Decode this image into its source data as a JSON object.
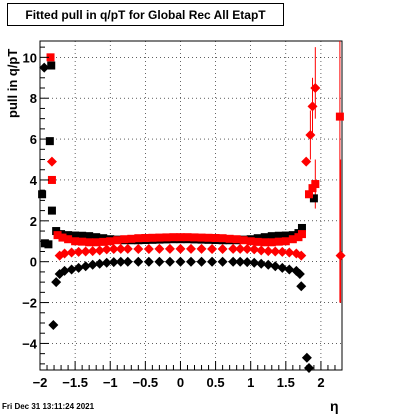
{
  "chart_data": {
    "type": "scatter",
    "title": "Fitted pull in q/pT for Global Rec All EtapT",
    "xlabel": "η",
    "ylabel": "pull in q/pT",
    "xlim": [
      -2.0,
      2.3
    ],
    "ylim": [
      -5.3,
      10.8
    ],
    "xticks": [
      -2,
      -1.5,
      -1,
      -0.5,
      0,
      0.5,
      1,
      1.5,
      2
    ],
    "xtick_labels": [
      "−2",
      "−1.5",
      "−1",
      "−0.5",
      "0",
      "0.5",
      "1",
      "1.5",
      "2"
    ],
    "yticks": [
      -4,
      -2,
      0,
      2,
      4,
      6,
      8,
      10
    ],
    "ytick_labels": [
      "−4",
      "−2",
      "0",
      "2",
      "4",
      "6",
      "8",
      "10"
    ],
    "grid": true,
    "timestamp": "Fri Dec 31 13:11:24 2021",
    "series": [
      {
        "marker": "square",
        "color": "#000000",
        "points": [
          [
            -1.97,
            3.3
          ],
          [
            -1.93,
            0.9
          ],
          [
            -1.88,
            0.85
          ],
          [
            -1.86,
            5.9
          ],
          [
            -1.84,
            9.6
          ],
          [
            -1.83,
            2.5
          ],
          [
            -1.77,
            1.5
          ],
          [
            -1.7,
            1.35
          ],
          [
            -1.6,
            1.3
          ],
          [
            -1.5,
            1.28
          ],
          [
            -1.4,
            1.27
          ],
          [
            -1.3,
            1.25
          ],
          [
            -1.2,
            1.2
          ],
          [
            -1.1,
            1.15
          ],
          [
            -1.0,
            1.1
          ],
          [
            -0.9,
            1.08
          ],
          [
            -0.8,
            1.05
          ],
          [
            -0.7,
            1.05
          ],
          [
            -0.6,
            1.05
          ],
          [
            -0.5,
            1.06
          ],
          [
            -0.4,
            1.07
          ],
          [
            -0.3,
            1.08
          ],
          [
            -0.2,
            1.09
          ],
          [
            -0.1,
            1.1
          ],
          [
            0.0,
            1.1
          ],
          [
            0.1,
            1.1
          ],
          [
            0.2,
            1.09
          ],
          [
            0.3,
            1.08
          ],
          [
            0.4,
            1.07
          ],
          [
            0.5,
            1.06
          ],
          [
            0.6,
            1.05
          ],
          [
            0.7,
            1.05
          ],
          [
            0.8,
            1.05
          ],
          [
            0.9,
            1.08
          ],
          [
            1.0,
            1.1
          ],
          [
            1.1,
            1.15
          ],
          [
            1.2,
            1.2
          ],
          [
            1.3,
            1.25
          ],
          [
            1.4,
            1.27
          ],
          [
            1.5,
            1.28
          ],
          [
            1.6,
            1.3
          ],
          [
            1.68,
            1.4
          ],
          [
            1.73,
            1.65
          ],
          [
            1.9,
            3.1
          ]
        ]
      },
      {
        "marker": "diamond",
        "color": "#000000",
        "points": [
          [
            -1.94,
            9.5
          ],
          [
            -1.81,
            -3.1
          ],
          [
            -1.77,
            -1.0
          ],
          [
            -1.72,
            -0.6
          ],
          [
            -1.65,
            -0.45
          ],
          [
            -1.55,
            -0.38
          ],
          [
            -1.45,
            -0.3
          ],
          [
            -1.35,
            -0.22
          ],
          [
            -1.25,
            -0.15
          ],
          [
            -1.15,
            -0.1
          ],
          [
            -1.05,
            -0.05
          ],
          [
            -0.95,
            -0.02
          ],
          [
            -0.85,
            0.0
          ],
          [
            -0.75,
            0.0
          ],
          [
            -0.6,
            0.0
          ],
          [
            -0.45,
            0.0
          ],
          [
            -0.3,
            0.0
          ],
          [
            -0.15,
            0.0
          ],
          [
            0.0,
            0.0
          ],
          [
            0.15,
            0.0
          ],
          [
            0.3,
            0.0
          ],
          [
            0.45,
            0.0
          ],
          [
            0.6,
            0.0
          ],
          [
            0.75,
            0.0
          ],
          [
            0.85,
            0.0
          ],
          [
            0.95,
            -0.02
          ],
          [
            1.05,
            -0.05
          ],
          [
            1.15,
            -0.1
          ],
          [
            1.25,
            -0.15
          ],
          [
            1.35,
            -0.22
          ],
          [
            1.45,
            -0.3
          ],
          [
            1.55,
            -0.38
          ],
          [
            1.65,
            -0.45
          ],
          [
            1.7,
            -0.6
          ],
          [
            1.72,
            -1.2
          ],
          [
            1.8,
            -4.7
          ],
          [
            1.83,
            -5.2
          ]
        ]
      },
      {
        "marker": "square",
        "color": "#ff0000",
        "points": [
          [
            -1.85,
            10.0
          ],
          [
            -1.83,
            4.0
          ],
          [
            -1.75,
            1.3
          ],
          [
            -1.68,
            1.18
          ],
          [
            -1.6,
            1.1
          ],
          [
            -1.5,
            1.0
          ],
          [
            -1.4,
            0.98
          ],
          [
            -1.3,
            0.95
          ],
          [
            -1.2,
            0.95
          ],
          [
            -1.1,
            0.97
          ],
          [
            -1.0,
            1.0
          ],
          [
            -0.9,
            1.05
          ],
          [
            -0.8,
            1.1
          ],
          [
            -0.7,
            1.12
          ],
          [
            -0.6,
            1.15
          ],
          [
            -0.5,
            1.16
          ],
          [
            -0.4,
            1.17
          ],
          [
            -0.3,
            1.18
          ],
          [
            -0.2,
            1.19
          ],
          [
            -0.1,
            1.2
          ],
          [
            0.0,
            1.2
          ],
          [
            0.1,
            1.2
          ],
          [
            0.2,
            1.19
          ],
          [
            0.3,
            1.18
          ],
          [
            0.4,
            1.17
          ],
          [
            0.5,
            1.16
          ],
          [
            0.6,
            1.15
          ],
          [
            0.7,
            1.12
          ],
          [
            0.8,
            1.1
          ],
          [
            0.9,
            1.05
          ],
          [
            1.0,
            1.0
          ],
          [
            1.1,
            0.97
          ],
          [
            1.2,
            0.95
          ],
          [
            1.3,
            0.95
          ],
          [
            1.4,
            0.98
          ],
          [
            1.5,
            1.0
          ],
          [
            1.6,
            1.1
          ],
          [
            1.68,
            1.2
          ],
          [
            1.73,
            1.35
          ],
          [
            1.83,
            3.3
          ],
          [
            1.88,
            3.6
          ],
          [
            1.92,
            3.8
          ],
          [
            2.27,
            7.1
          ]
        ],
        "errors": [
          [
            1.92,
            2.6,
            5.0
          ],
          [
            2.27,
            -2.0,
            10.8
          ]
        ]
      },
      {
        "marker": "diamond",
        "color": "#ff0000",
        "points": [
          [
            -1.83,
            4.9
          ],
          [
            -1.72,
            0.3
          ],
          [
            -1.65,
            0.4
          ],
          [
            -1.55,
            0.45
          ],
          [
            -1.45,
            0.48
          ],
          [
            -1.35,
            0.5
          ],
          [
            -1.25,
            0.52
          ],
          [
            -1.15,
            0.55
          ],
          [
            -1.05,
            0.6
          ],
          [
            -0.95,
            0.62
          ],
          [
            -0.85,
            0.63
          ],
          [
            -0.75,
            0.63
          ],
          [
            -0.6,
            0.62
          ],
          [
            -0.45,
            0.62
          ],
          [
            -0.3,
            0.63
          ],
          [
            -0.15,
            0.63
          ],
          [
            0.0,
            0.63
          ],
          [
            0.15,
            0.63
          ],
          [
            0.3,
            0.63
          ],
          [
            0.45,
            0.62
          ],
          [
            0.6,
            0.62
          ],
          [
            0.75,
            0.63
          ],
          [
            0.85,
            0.63
          ],
          [
            0.95,
            0.62
          ],
          [
            1.05,
            0.6
          ],
          [
            1.15,
            0.55
          ],
          [
            1.25,
            0.52
          ],
          [
            1.35,
            0.5
          ],
          [
            1.45,
            0.48
          ],
          [
            1.55,
            0.45
          ],
          [
            1.65,
            0.4
          ],
          [
            1.72,
            0.3
          ],
          [
            1.79,
            4.9
          ],
          [
            1.85,
            6.2
          ],
          [
            1.88,
            7.6
          ],
          [
            1.92,
            8.5
          ],
          [
            2.28,
            0.3
          ]
        ],
        "errors": [
          [
            1.85,
            5.0,
            7.4
          ],
          [
            1.88,
            6.2,
            9.0
          ],
          [
            1.92,
            7.0,
            10.5
          ],
          [
            2.28,
            -2.0,
            5.0
          ]
        ]
      }
    ]
  }
}
